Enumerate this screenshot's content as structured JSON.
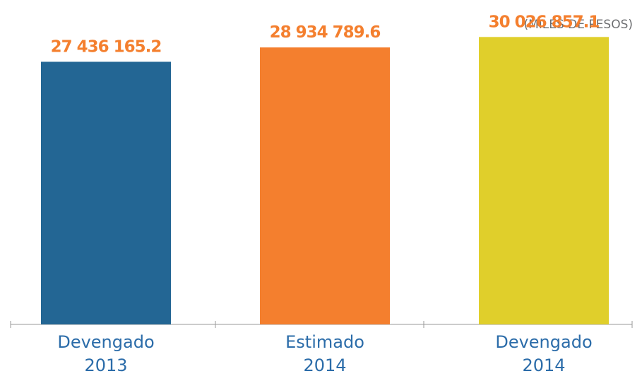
{
  "chart_data": {
    "type": "bar",
    "unit_label": "(MILES DE PESOS)",
    "categories": [
      {
        "line1": "Devengado",
        "line2": "2013"
      },
      {
        "line1": "Estimado",
        "line2": "2014"
      },
      {
        "line1": "Devengado",
        "line2": "2014"
      }
    ],
    "values": [
      27436165.2,
      28934789.6,
      30026857.1
    ],
    "value_labels": [
      "27 436 165.2",
      "28 934 789.6",
      "30 026 857.1"
    ],
    "colors": [
      "#236694",
      "#f47f2e",
      "#e0cf2b"
    ],
    "ylim": [
      0,
      33300000
    ],
    "grid": false,
    "legend": "none"
  }
}
